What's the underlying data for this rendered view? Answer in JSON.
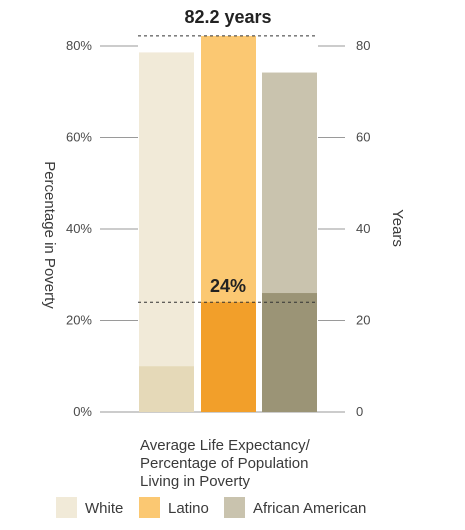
{
  "chart_data": {
    "type": "bar",
    "categories": [
      "White",
      "Latino",
      "African American"
    ],
    "series": [
      {
        "name": "Average Life Expectancy (years)",
        "values": [
          78.6,
          82.2,
          74.2
        ]
      },
      {
        "name": "Percentage Living in Poverty (%)",
        "values": [
          10,
          24,
          26
        ]
      }
    ],
    "left_axis": {
      "label": "Percentage in Poverty",
      "ticks": [
        "0%",
        "20%",
        "40%",
        "60%",
        "80%"
      ],
      "range": [
        0,
        80
      ]
    },
    "right_axis": {
      "label": "Years",
      "ticks": [
        "0",
        "20",
        "40",
        "60",
        "80"
      ],
      "range": [
        0,
        80
      ]
    },
    "annotations": {
      "top": "82.2 years",
      "middle": "24%"
    },
    "caption": [
      "Average Life Expectancy/",
      "Percentage of Population",
      "Living in Poverty"
    ],
    "legend": [
      "White",
      "Latino",
      "African American"
    ],
    "colors": {
      "light": [
        "#f1ead8",
        "#fbc872",
        "#c9c3ae"
      ],
      "dark": [
        "#e5d9b8",
        "#f29f2a",
        "#9b9476"
      ]
    },
    "grid": true,
    "legend_position": "bottom"
  }
}
